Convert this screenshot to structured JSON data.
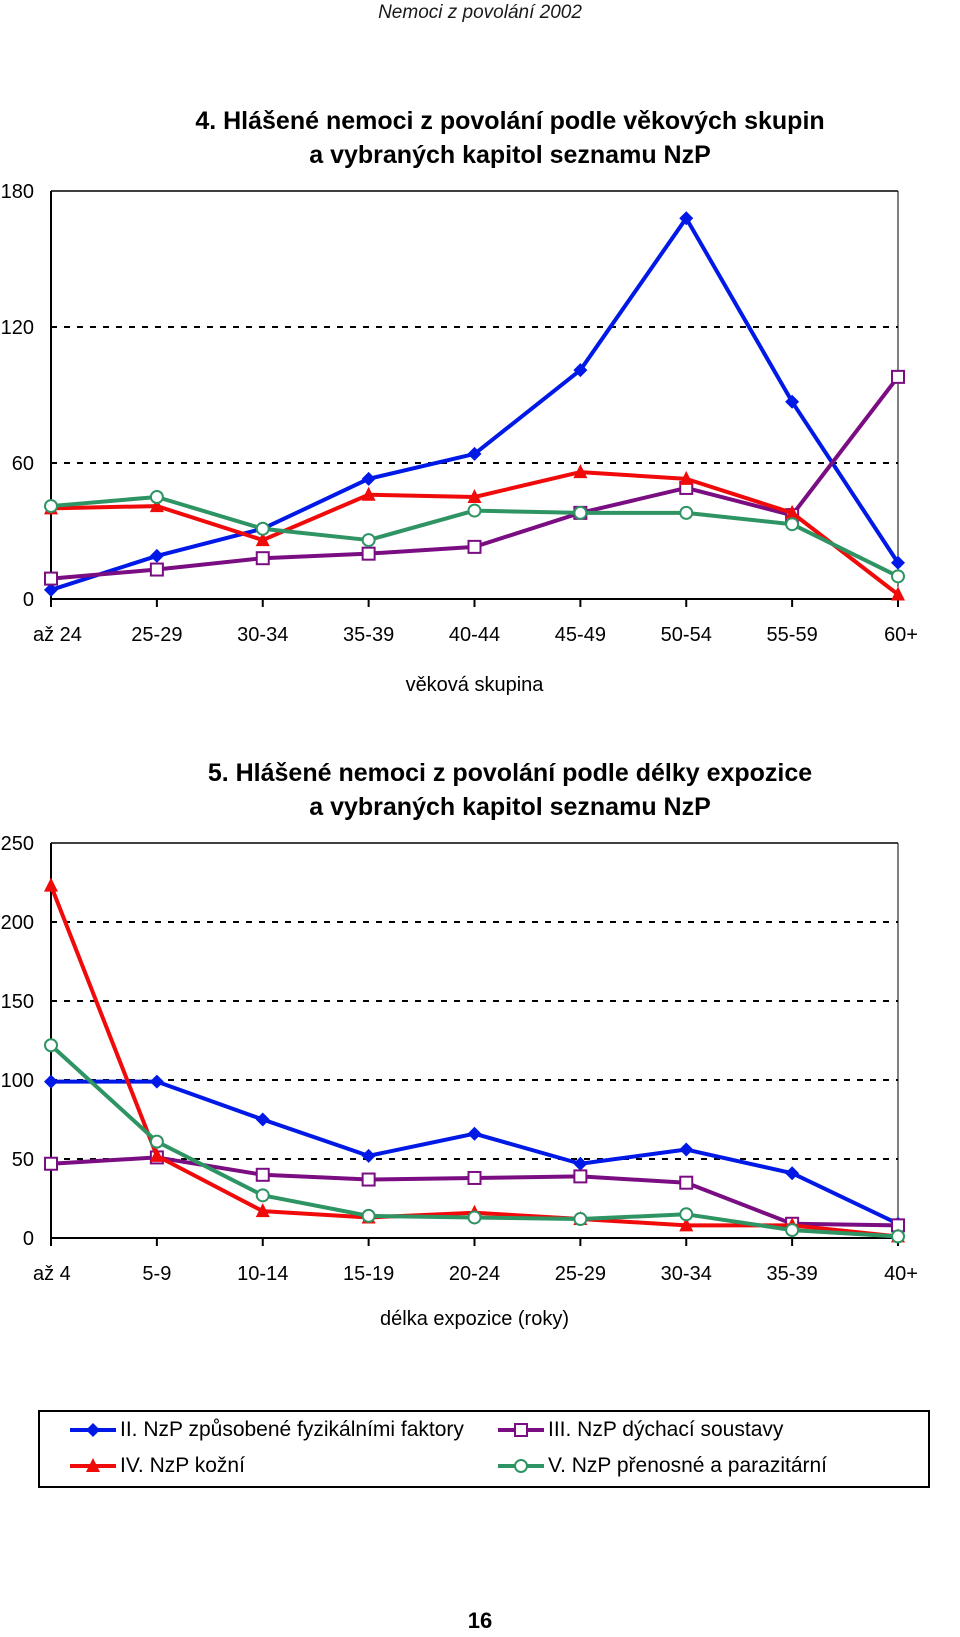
{
  "header": "Nemoci z povolání 2002",
  "page_number": "16",
  "colors": {
    "s1": "#0019e6",
    "s2": "#7a0d82",
    "s3": "#f00a0a",
    "s4": "#2f9463"
  },
  "chart_data": [
    {
      "type": "line",
      "title": "4. Hlášené nemoci z povolání podle věkových skupin a vybraných kapitol seznamu NzP",
      "title_lines": [
        "4. Hlášené nemoci z povolání podle věkových skupin",
        "a vybraných kapitol seznamu NzP"
      ],
      "xlabel": "věková skupina",
      "ylabel": "",
      "ylim": [
        0,
        180
      ],
      "yticks": [
        "0",
        "60",
        "120",
        "180"
      ],
      "categories": [
        "až 24",
        "25-29",
        "30-34",
        "35-39",
        "40-44",
        "45-49",
        "50-54",
        "55-59",
        "60+"
      ],
      "grid": "dashed",
      "series": [
        {
          "name": "II. NzP způsobené fyzikálními faktory",
          "marker": "diamond",
          "values": [
            4,
            19,
            31,
            53,
            64,
            101,
            168,
            87,
            16
          ]
        },
        {
          "name": "III. NzP dýchací soustavy",
          "marker": "square",
          "values": [
            9,
            13,
            18,
            20,
            23,
            38,
            49,
            37,
            98
          ]
        },
        {
          "name": "IV. NzP kožní",
          "marker": "triangle",
          "values": [
            40,
            41,
            26,
            46,
            45,
            56,
            53,
            38,
            2
          ]
        },
        {
          "name": "V. NzP přenosné a parazitární",
          "marker": "circle",
          "values": [
            41,
            45,
            31,
            26,
            39,
            38,
            38,
            33,
            10
          ]
        }
      ]
    },
    {
      "type": "line",
      "title": "5. Hlášené nemoci z povolání podle délky expozice a vybraných kapitol seznamu NzP",
      "title_lines": [
        "5. Hlášené nemoci z povolání podle délky expozice",
        "a vybraných kapitol seznamu NzP"
      ],
      "xlabel": "délka expozice (roky)",
      "ylabel": "",
      "ylim": [
        0,
        250
      ],
      "yticks": [
        "0",
        "50",
        "100",
        "150",
        "200",
        "250"
      ],
      "categories": [
        "až 4",
        "5-9",
        "10-14",
        "15-19",
        "20-24",
        "25-29",
        "30-34",
        "35-39",
        "40+"
      ],
      "grid": "dashed",
      "legend_position": "bottom",
      "series": [
        {
          "name": "II. NzP způsobené fyzikálními faktory",
          "marker": "diamond",
          "values": [
            99,
            99,
            75,
            52,
            66,
            47,
            56,
            41,
            9
          ]
        },
        {
          "name": "III. NzP dýchací soustavy",
          "marker": "square",
          "values": [
            47,
            51,
            40,
            37,
            38,
            39,
            35,
            9,
            8
          ]
        },
        {
          "name": "IV. NzP kožní",
          "marker": "triangle",
          "values": [
            223,
            52,
            17,
            13,
            16,
            12,
            8,
            8,
            1
          ]
        },
        {
          "name": "V. NzP přenosné a parazitární",
          "marker": "circle",
          "values": [
            122,
            61,
            27,
            14,
            13,
            12,
            15,
            5,
            1
          ]
        }
      ]
    }
  ]
}
